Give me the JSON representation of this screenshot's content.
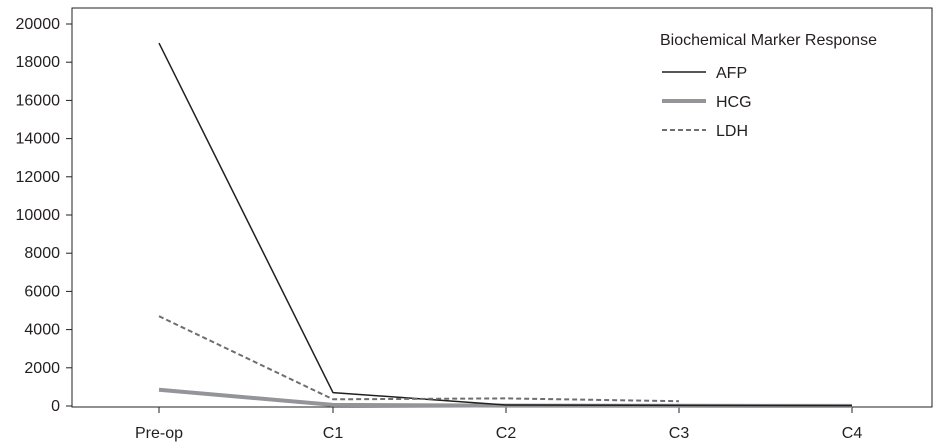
{
  "chart_data": {
    "type": "line",
    "categories": [
      "Pre-op",
      "C1",
      "C2",
      "C3",
      "C4"
    ],
    "ylim": [
      0,
      20000
    ],
    "yticks": [
      0,
      2000,
      4000,
      6000,
      8000,
      10000,
      12000,
      14000,
      16000,
      18000,
      20000
    ],
    "ytick_labels": [
      "0",
      "2000",
      "4000",
      "6000",
      "8000",
      "10000",
      "12000",
      "14000",
      "16000",
      "18000",
      "20000"
    ],
    "grid": false,
    "legend": {
      "title": "Biochemical Marker Response",
      "position": "top-right"
    },
    "series": [
      {
        "name": "AFP",
        "values": [
          19000,
          700,
          50,
          30,
          20
        ],
        "color": "#231f20",
        "style": "solid"
      },
      {
        "name": "HCG",
        "values": [
          850,
          60,
          20,
          10,
          5
        ],
        "color": "#939598",
        "style": "thick"
      },
      {
        "name": "LDH",
        "values": [
          4700,
          350,
          400,
          250,
          null
        ],
        "color": "#6d6e71",
        "style": "dashed"
      }
    ]
  }
}
